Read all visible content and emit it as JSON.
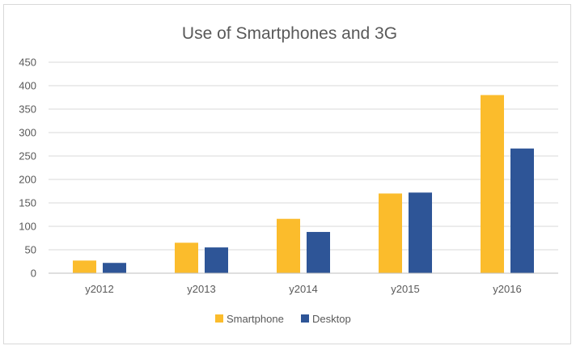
{
  "chart_data": {
    "type": "bar",
    "title": "Use of Smartphones and 3G",
    "xlabel": "",
    "ylabel": "",
    "categories": [
      "y2012",
      "y2013",
      "y2014",
      "y2015",
      "y2016"
    ],
    "series": [
      {
        "name": "Smartphone",
        "color": "#fbbc2c",
        "values": [
          27,
          65,
          116,
          170,
          380
        ]
      },
      {
        "name": "Desktop",
        "color": "#2e5597",
        "values": [
          22,
          55,
          88,
          172,
          266
        ]
      }
    ],
    "ylim": [
      0,
      450
    ],
    "yticks": [
      "0",
      "50",
      "100",
      "150",
      "200",
      "250",
      "300",
      "350",
      "400",
      "450"
    ],
    "grid": true,
    "legend_position": "bottom"
  }
}
